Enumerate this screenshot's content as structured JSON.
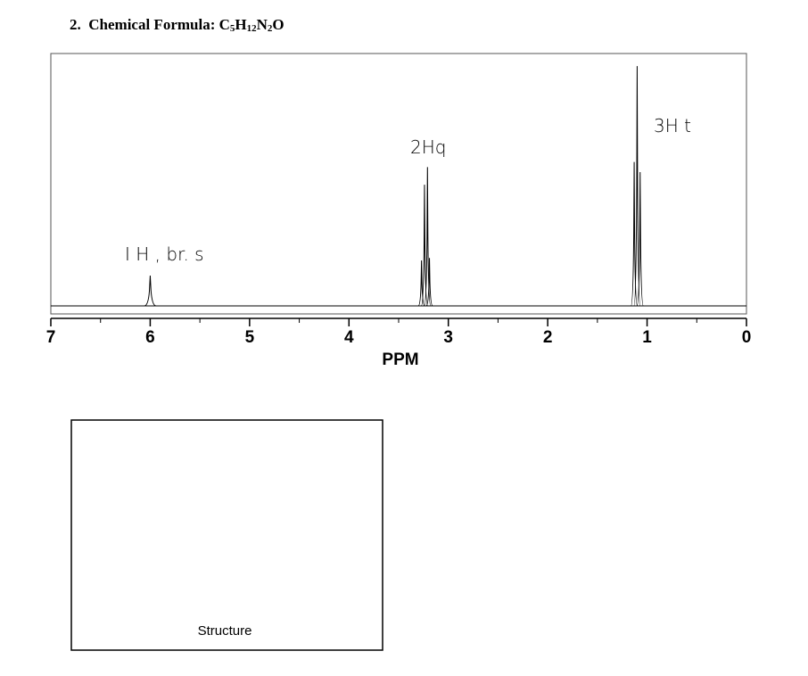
{
  "heading": {
    "number": "2.",
    "label": "Chemical Formula:",
    "formula": [
      {
        "text": "C",
        "sub": "5"
      },
      {
        "text": "H",
        "sub": "12"
      },
      {
        "text": "N",
        "sub": "2"
      },
      {
        "text": "O"
      }
    ]
  },
  "chart_data": {
    "type": "nmr",
    "xlabel": "PPM",
    "xlim": [
      7,
      0
    ],
    "xticks": [
      0,
      1,
      2,
      3,
      4,
      5,
      6,
      7
    ],
    "ylim": [
      0,
      100
    ],
    "x": [
      6.0,
      3.27,
      3.24,
      3.21,
      3.19,
      1.13,
      1.1,
      1.07
    ],
    "values": [
      12,
      18,
      48,
      55,
      19,
      57,
      95,
      53
    ],
    "color": "#000000",
    "annotations": [
      "I H , br. s",
      "2Hq",
      "3H t"
    ]
  },
  "structure_box": {
    "label": "Structure"
  }
}
